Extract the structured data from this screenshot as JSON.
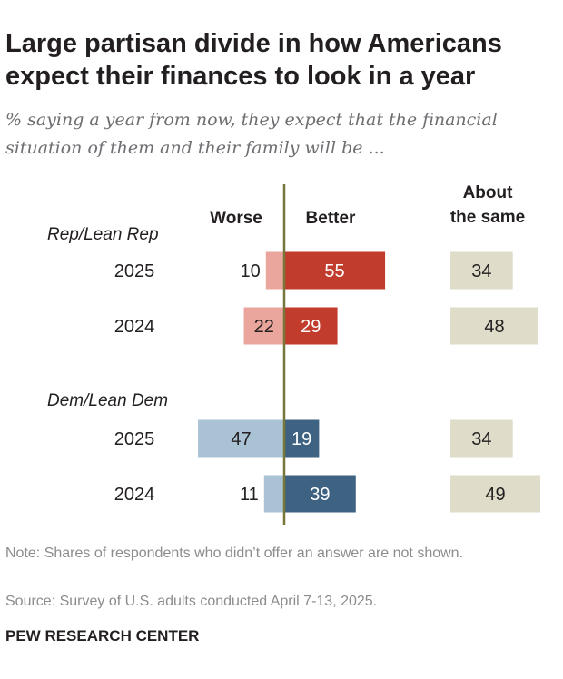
{
  "title": "Large partisan divide in how Americans expect their finances to look in a year",
  "subtitle": "% saying a year from now, they expect that the financial situation of them and their family will be ...",
  "note": "Note: Shares of respondents who didn’t offer an answer are not shown.",
  "source": "Source: Survey of U.S. adults conducted April 7-13, 2025.",
  "footer": "PEW RESEARCH CENTER",
  "chart_data": {
    "type": "bar",
    "columns": {
      "worse": "Worse",
      "better": "Better",
      "same_line1": "About",
      "same_line2": "the same"
    },
    "groups": [
      {
        "name": "Rep/Lean Rep",
        "colors": {
          "worse": "#eaa59d",
          "better": "#c13c2d"
        },
        "rows": [
          {
            "year": "2025",
            "worse": 10,
            "better": 55,
            "same": 34
          },
          {
            "year": "2024",
            "worse": 22,
            "better": 29,
            "same": 48
          }
        ]
      },
      {
        "name": "Dem/Lean Dem",
        "colors": {
          "worse": "#a9c3d5",
          "better": "#3d6282"
        },
        "rows": [
          {
            "year": "2025",
            "worse": 47,
            "better": 19,
            "same": 34
          },
          {
            "year": "2024",
            "worse": 11,
            "better": 39,
            "same": 49
          }
        ]
      }
    ],
    "same_color": "#dfdcc9",
    "axis_color": "#77773a"
  }
}
